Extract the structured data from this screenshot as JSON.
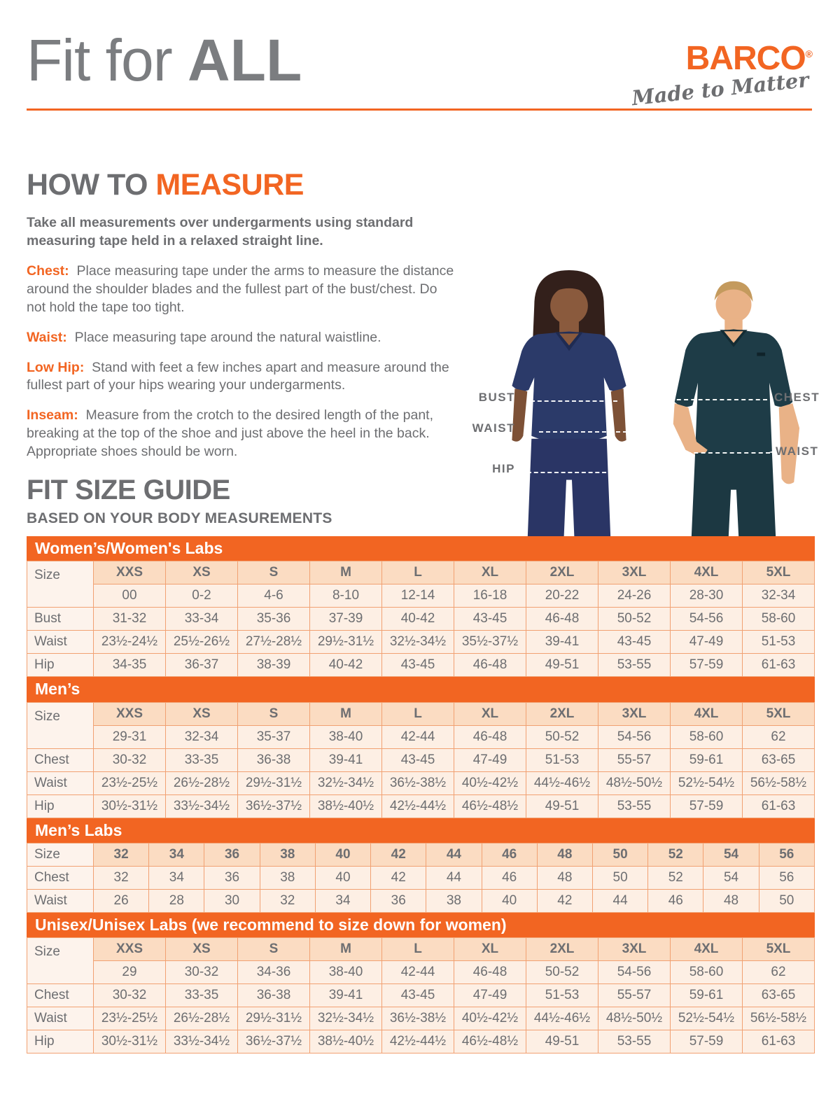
{
  "header": {
    "title_light": "Fit for ",
    "title_bold": "ALL"
  },
  "brand": {
    "name": "BARCO",
    "registered": "®",
    "tagline": "Made to Matter"
  },
  "how_to": {
    "title_gray": "HOW TO ",
    "title_orange": "MEASURE",
    "intro": "Take all measurements over undergarments using standard measuring tape held in a relaxed straight line.",
    "items": [
      {
        "label": "Chest:",
        "text": "Place measuring tape under the arms to measure the distance around the shoulder blades and the fullest part of the bust/chest. Do not hold the tape too tight."
      },
      {
        "label": "Waist:",
        "text": "Place measuring tape around the natural waistline."
      },
      {
        "label": "Low Hip:",
        "text": "Stand with feet a few inches apart and measure around the fullest part of your hips wearing your undergarments."
      },
      {
        "label": "Inseam:",
        "text": "Measure from the crotch to the desired length of the pant, breaking at the top of the shoe and just above the heel in the back. Appropriate shoes should be worn."
      }
    ]
  },
  "figure": {
    "labels": {
      "bust": "BUST",
      "waist_left": "WAIST",
      "hip": "HIP",
      "chest": "CHEST",
      "waist_right": "WAIST"
    }
  },
  "fit_guide": {
    "title": "FIT SIZE GUIDE",
    "subtitle": "BASED ON YOUR BODY MEASUREMENTS"
  },
  "size_tables": [
    {
      "title": "Women’s/Women's Labs",
      "col_header": "Size",
      "size_labels": [
        "XXS",
        "XS",
        "S",
        "M",
        "L",
        "XL",
        "2XL",
        "3XL",
        "4XL",
        "5XL"
      ],
      "size_numbers": [
        "00",
        "0-2",
        "4-6",
        "8-10",
        "12-14",
        "16-18",
        "20-22",
        "24-26",
        "28-30",
        "32-34"
      ],
      "rows": [
        {
          "label": "Bust",
          "values": [
            "31-32",
            "33-34",
            "35-36",
            "37-39",
            "40-42",
            "43-45",
            "46-48",
            "50-52",
            "54-56",
            "58-60"
          ]
        },
        {
          "label": "Waist",
          "values": [
            "23½-24½",
            "25½-26½",
            "27½-28½",
            "29½-31½",
            "32½-34½",
            "35½-37½",
            "39-41",
            "43-45",
            "47-49",
            "51-53"
          ]
        },
        {
          "label": "Hip",
          "values": [
            "34-35",
            "36-37",
            "38-39",
            "40-42",
            "43-45",
            "46-48",
            "49-51",
            "53-55",
            "57-59",
            "61-63"
          ]
        }
      ]
    },
    {
      "title": "Men’s",
      "col_header": "Size",
      "size_labels": [
        "XXS",
        "XS",
        "S",
        "M",
        "L",
        "XL",
        "2XL",
        "3XL",
        "4XL",
        "5XL"
      ],
      "size_numbers": [
        "29-31",
        "32-34",
        "35-37",
        "38-40",
        "42-44",
        "46-48",
        "50-52",
        "54-56",
        "58-60",
        "62"
      ],
      "rows": [
        {
          "label": "Chest",
          "values": [
            "30-32",
            "33-35",
            "36-38",
            "39-41",
            "43-45",
            "47-49",
            "51-53",
            "55-57",
            "59-61",
            "63-65"
          ]
        },
        {
          "label": "Waist",
          "values": [
            "23½-25½",
            "26½-28½",
            "29½-31½",
            "32½-34½",
            "36½-38½",
            "40½-42½",
            "44½-46½",
            "48½-50½",
            "52½-54½",
            "56½-58½"
          ]
        },
        {
          "label": "Hip",
          "values": [
            "30½-31½",
            "33½-34½",
            "36½-37½",
            "38½-40½",
            "42½-44½",
            "46½-48½",
            "49-51",
            "53-55",
            "57-59",
            "61-63"
          ]
        }
      ]
    },
    {
      "title": "Men’s Labs",
      "col_header": "Size",
      "size_labels": [
        "32",
        "34",
        "36",
        "38",
        "40",
        "42",
        "44",
        "46",
        "48",
        "50",
        "52",
        "54",
        "56"
      ],
      "size_numbers": null,
      "rows": [
        {
          "label": "Chest",
          "values": [
            "32",
            "34",
            "36",
            "38",
            "40",
            "42",
            "44",
            "46",
            "48",
            "50",
            "52",
            "54",
            "56"
          ]
        },
        {
          "label": "Waist",
          "values": [
            "26",
            "28",
            "30",
            "32",
            "34",
            "36",
            "38",
            "40",
            "42",
            "44",
            "46",
            "48",
            "50"
          ]
        }
      ]
    },
    {
      "title": "Unisex/Unisex Labs (we recommend to size down for women)",
      "col_header": "Size",
      "size_labels": [
        "XXS",
        "XS",
        "S",
        "M",
        "L",
        "XL",
        "2XL",
        "3XL",
        "4XL",
        "5XL"
      ],
      "size_numbers": [
        "29",
        "30-32",
        "34-36",
        "38-40",
        "42-44",
        "46-48",
        "50-52",
        "54-56",
        "58-60",
        "62"
      ],
      "rows": [
        {
          "label": "Chest",
          "values": [
            "30-32",
            "33-35",
            "36-38",
            "39-41",
            "43-45",
            "47-49",
            "51-53",
            "55-57",
            "59-61",
            "63-65"
          ]
        },
        {
          "label": "Waist",
          "values": [
            "23½-25½",
            "26½-28½",
            "29½-31½",
            "32½-34½",
            "36½-38½",
            "40½-42½",
            "44½-46½",
            "48½-50½",
            "52½-54½",
            "56½-58½"
          ]
        },
        {
          "label": "Hip",
          "values": [
            "30½-31½",
            "33½-34½",
            "36½-37½",
            "38½-40½",
            "42½-44½",
            "46½-48½",
            "49-51",
            "53-55",
            "57-59",
            "61-63"
          ]
        }
      ]
    }
  ],
  "colors": {
    "accent_orange": "#F26522",
    "text_gray": "#6D6E71",
    "table_header_bg": "#FBDCC2",
    "table_row_bg": "#FDEFE4",
    "table_label_bg": "#FDF3EC",
    "table_border": "#F1A172",
    "woman_scrub_navy": "#2B3A69",
    "man_scrub_teal": "#1E3C47"
  }
}
